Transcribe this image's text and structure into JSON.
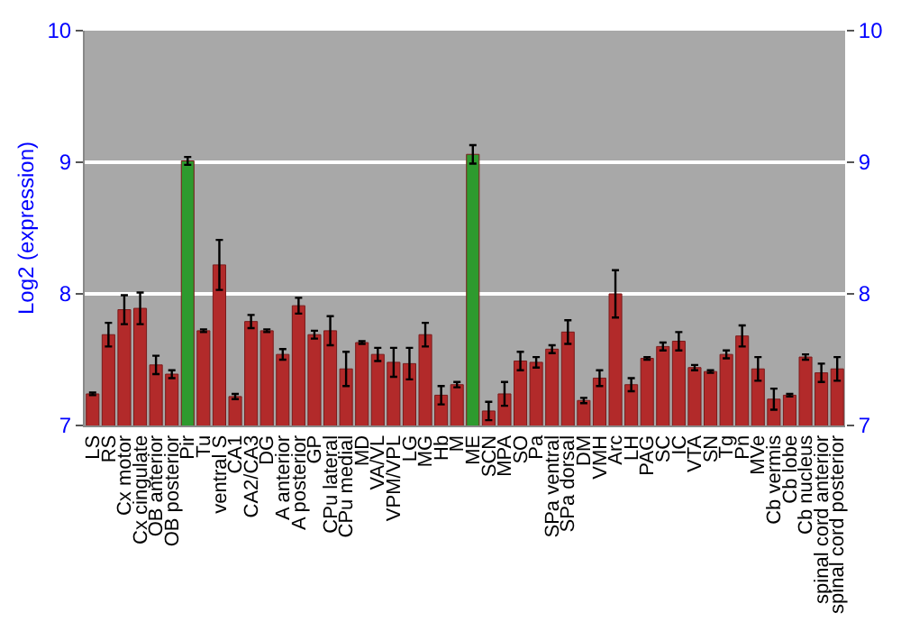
{
  "chart_data": {
    "type": "bar",
    "ylabel": "Log2 (expression)",
    "categories": [
      "LS",
      "RS",
      "Cx motor",
      "Cx cingulate",
      "OB anterior",
      "OB posterior",
      "Pir",
      "Tu",
      "ventral S",
      "CA1",
      "CA2/CA3",
      "DG",
      "A anterior",
      "A posterior",
      "GP",
      "CPu lateral",
      "CPu medial",
      "MD",
      "VA/VL",
      "VPM/VPL",
      "LG",
      "MG",
      "Hb",
      "M",
      "ME",
      "SCN",
      "MPA",
      "SO",
      "Pa",
      "SPa ventral",
      "SPa dorsal",
      "DM",
      "VMH",
      "Arc",
      "LH",
      "PAG",
      "SC",
      "IC",
      "VTA",
      "SN",
      "Tg",
      "Pn",
      "MVe",
      "Cb vermis",
      "Cb lobe",
      "Cb nucleus",
      "spinal cord anterior",
      "spinal cord posterior"
    ],
    "values": [
      7.24,
      7.69,
      7.88,
      7.89,
      7.46,
      7.39,
      9.01,
      7.72,
      8.22,
      7.22,
      7.79,
      7.72,
      7.54,
      7.91,
      7.69,
      7.72,
      7.43,
      7.63,
      7.54,
      7.48,
      7.47,
      7.69,
      7.23,
      7.31,
      9.06,
      7.11,
      7.24,
      7.49,
      7.48,
      7.58,
      7.71,
      7.19,
      7.36,
      8.0,
      7.31,
      7.51,
      7.6,
      7.64,
      7.44,
      7.41,
      7.54,
      7.68,
      7.43,
      7.2,
      7.23,
      7.52,
      7.4,
      7.43
    ],
    "errors": [
      0.01,
      0.09,
      0.11,
      0.12,
      0.07,
      0.03,
      0.03,
      0.01,
      0.19,
      0.02,
      0.05,
      0.01,
      0.04,
      0.06,
      0.03,
      0.11,
      0.13,
      0.01,
      0.05,
      0.11,
      0.12,
      0.09,
      0.07,
      0.02,
      0.07,
      0.07,
      0.09,
      0.07,
      0.04,
      0.03,
      0.09,
      0.02,
      0.06,
      0.18,
      0.05,
      0.01,
      0.03,
      0.07,
      0.02,
      0.01,
      0.03,
      0.08,
      0.09,
      0.08,
      0.01,
      0.02,
      0.07,
      0.09
    ],
    "colors": [
      "#b22a2a",
      "#b22a2a",
      "#b22a2a",
      "#b22a2a",
      "#b22a2a",
      "#b22a2a",
      "#2e9a2e",
      "#b22a2a",
      "#b22a2a",
      "#b22a2a",
      "#b22a2a",
      "#b22a2a",
      "#b22a2a",
      "#b22a2a",
      "#b22a2a",
      "#b22a2a",
      "#b22a2a",
      "#b22a2a",
      "#b22a2a",
      "#b22a2a",
      "#b22a2a",
      "#b22a2a",
      "#b22a2a",
      "#b22a2a",
      "#2e9a2e",
      "#b22a2a",
      "#b22a2a",
      "#b22a2a",
      "#b22a2a",
      "#b22a2a",
      "#b22a2a",
      "#b22a2a",
      "#b22a2a",
      "#b22a2a",
      "#b22a2a",
      "#b22a2a",
      "#b22a2a",
      "#b22a2a",
      "#b22a2a",
      "#b22a2a",
      "#b22a2a",
      "#b22a2a",
      "#b22a2a",
      "#b22a2a",
      "#b22a2a",
      "#b22a2a",
      "#b22a2a",
      "#b22a2a"
    ],
    "ylim": [
      7,
      10
    ],
    "yticks": [
      7,
      8,
      9,
      10
    ],
    "y2lim": [
      7,
      10
    ],
    "y2ticks": [
      7,
      8,
      9,
      10
    ],
    "grid": "y"
  }
}
